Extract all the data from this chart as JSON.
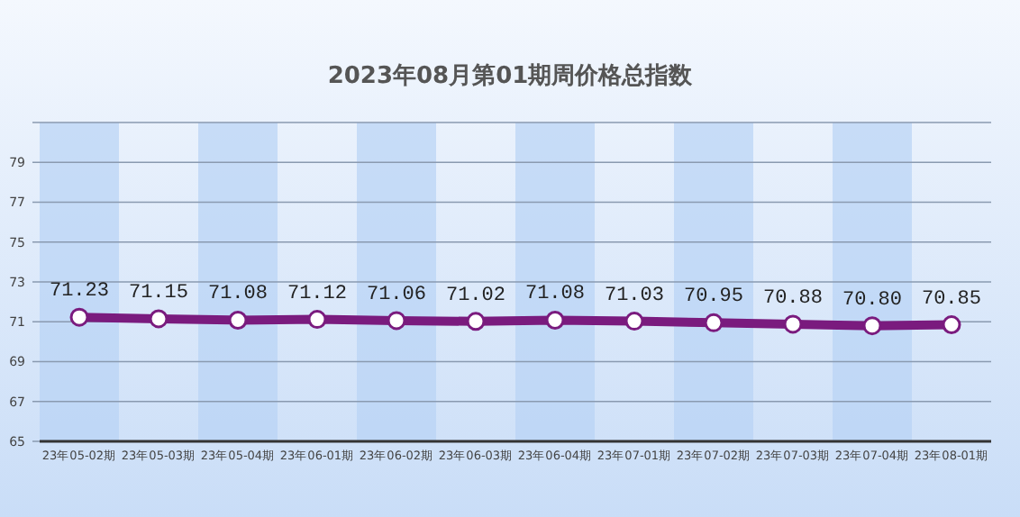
{
  "chart_data": {
    "type": "line",
    "title": "2023年08月第01期周价格总指数",
    "categories": [
      "23年05-02期",
      "23年05-03期",
      "23年05-04期",
      "23年06-01期",
      "23年06-02期",
      "23年06-03期",
      "23年06-04期",
      "23年07-01期",
      "23年07-02期",
      "23年07-03期",
      "23年07-04期",
      "23年08-01期"
    ],
    "series": [
      {
        "color": "#7a1b7e",
        "values": [
          71.23,
          71.15,
          71.08,
          71.12,
          71.06,
          71.02,
          71.08,
          71.03,
          70.95,
          70.88,
          70.8,
          70.85
        ],
        "value_labels": [
          "71.23",
          "71.15",
          "71.08",
          "71.12",
          "71.06",
          "71.02",
          "71.08",
          "71.03",
          "70.95",
          "70.88",
          "70.80",
          "70.85"
        ]
      }
    ],
    "bands": [
      {
        "axis": "x",
        "from": "23年05-02期",
        "to": "23年05-02期",
        "color": "#b8d3f5"
      },
      {
        "axis": "x",
        "from": "23年05-04期",
        "to": "23年05-04期",
        "color": "#b8d3f5"
      },
      {
        "axis": "x",
        "from": "23年06-02期",
        "to": "23年06-02期",
        "color": "#b8d3f5"
      },
      {
        "axis": "x",
        "from": "23年06-04期",
        "to": "23年06-04期",
        "color": "#b8d3f5"
      },
      {
        "axis": "x",
        "from": "23年07-02期",
        "to": "23年07-02期",
        "color": "#b8d3f5"
      },
      {
        "axis": "x",
        "from": "23年07-04期",
        "to": "23年07-04期",
        "color": "#b8d3f5"
      }
    ],
    "ylim": [
      65,
      81
    ],
    "yticks": [
      65,
      67,
      69,
      71,
      73,
      75,
      77,
      79,
      {
        "value": 81,
        "label": null
      }
    ],
    "grid": "y",
    "marker": "circle",
    "line_style": "solid"
  }
}
